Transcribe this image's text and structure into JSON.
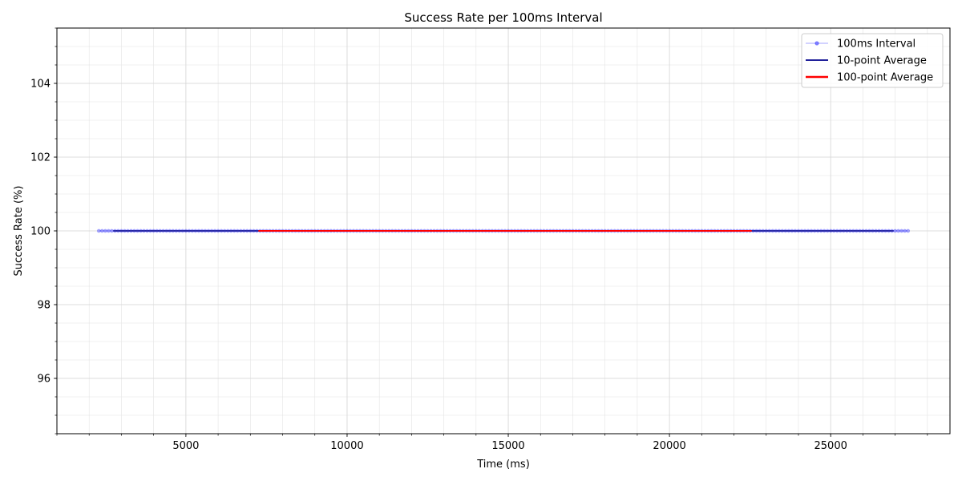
{
  "chart_data": {
    "type": "line",
    "title": "Success Rate per 100ms Interval",
    "xlabel": "Time (ms)",
    "ylabel": "Success Rate (%)",
    "xlim": [
      1000,
      28700
    ],
    "ylim": [
      94.5,
      105.5
    ],
    "xticks": [
      5000,
      10000,
      15000,
      20000,
      25000
    ],
    "yticks": [
      96,
      98,
      100,
      102,
      104
    ],
    "xtick_labels": [
      "5000",
      "10000",
      "15000",
      "20000",
      "25000"
    ],
    "ytick_labels": [
      "96",
      "98",
      "100",
      "102",
      "104"
    ],
    "x_minor_step": 1000,
    "y_minor_step": 0.5,
    "grid": true,
    "legend_position": "top-right",
    "series": [
      {
        "name": "100ms Interval",
        "color": "#0000ff",
        "style": "line-markers",
        "x_start": 2300,
        "x_end": 27400,
        "step": 100,
        "value": 100
      },
      {
        "name": "10-point Average",
        "color": "#00008b",
        "style": "line",
        "x_start": 2750,
        "x_end": 26950,
        "value": 100
      },
      {
        "name": "100-point Average",
        "color": "#ff0000",
        "style": "line-thick",
        "x_start": 7250,
        "x_end": 22550,
        "value": 100
      }
    ]
  }
}
